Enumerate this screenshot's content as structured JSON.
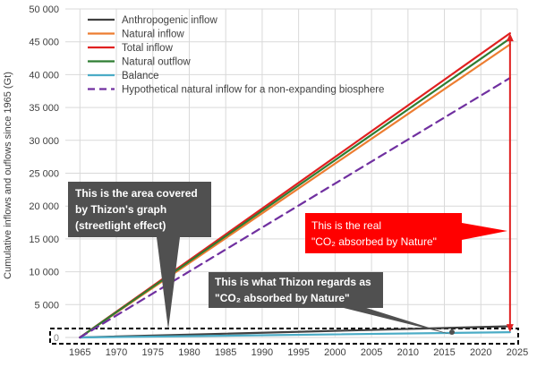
{
  "chart_data": {
    "type": "line",
    "ylabel": "Cumulative inflows and ouflows since 1965 (Gt)",
    "xlabel": "",
    "xlim": [
      1963,
      2025
    ],
    "ylim": [
      0,
      50000
    ],
    "x_ticks": [
      1965,
      1970,
      1975,
      1980,
      1985,
      1990,
      1995,
      2000,
      2005,
      2010,
      2015,
      2020,
      2025
    ],
    "y_ticks": [
      0,
      5000,
      10000,
      15000,
      20000,
      25000,
      30000,
      35000,
      40000,
      45000,
      50000
    ],
    "y_tick_labels": [
      "0",
      "5 000",
      "10 000",
      "15 000",
      "20 000",
      "25 000",
      "30 000",
      "35 000",
      "40 000",
      "45 000",
      "50 000"
    ],
    "grid": true,
    "legend_position": "top-left",
    "series": [
      {
        "name": "Anthropogenic inflow",
        "color": "#404040",
        "dash": "none",
        "x": [
          1965,
          2024
        ],
        "y": [
          0,
          1700
        ]
      },
      {
        "name": "Natural inflow",
        "color": "#ed7d31",
        "dash": "none",
        "x": [
          1965,
          2024
        ],
        "y": [
          0,
          44600
        ]
      },
      {
        "name": "Total inflow",
        "color": "#e02020",
        "dash": "none",
        "x": [
          1965,
          2024
        ],
        "y": [
          0,
          46300
        ]
      },
      {
        "name": "Natural outflow",
        "color": "#2e7d32",
        "dash": "none",
        "x": [
          1965,
          2024
        ],
        "y": [
          0,
          45500
        ]
      },
      {
        "name": "Balance",
        "color": "#4bacc6",
        "dash": "none",
        "x": [
          1965,
          2024
        ],
        "y": [
          0,
          800
        ]
      },
      {
        "name": "Hypothetical natural inflow for a non-expanding biosphere",
        "color": "#7030a0",
        "dash": "dash",
        "x": [
          1965,
          2024
        ],
        "y": [
          0,
          39500
        ]
      }
    ],
    "annotations": [
      {
        "id": "streetlight",
        "lines": [
          "This is the area covered",
          "by Thizon's graph",
          "(streetlight effect)"
        ]
      },
      {
        "id": "thizon",
        "lines": [
          "This is what Thizon regards as",
          "\"CO₂ absorbed by Nature\""
        ]
      },
      {
        "id": "real",
        "lines": [
          "This is the real",
          "\"CO₂ absorbed by Nature\""
        ]
      }
    ],
    "colors": {
      "callout_gray": "#505050",
      "callout_red": "#ff0000",
      "arrow_red": "#e02020",
      "grid": "#d9d9d9",
      "axis_text": "#404040"
    }
  }
}
